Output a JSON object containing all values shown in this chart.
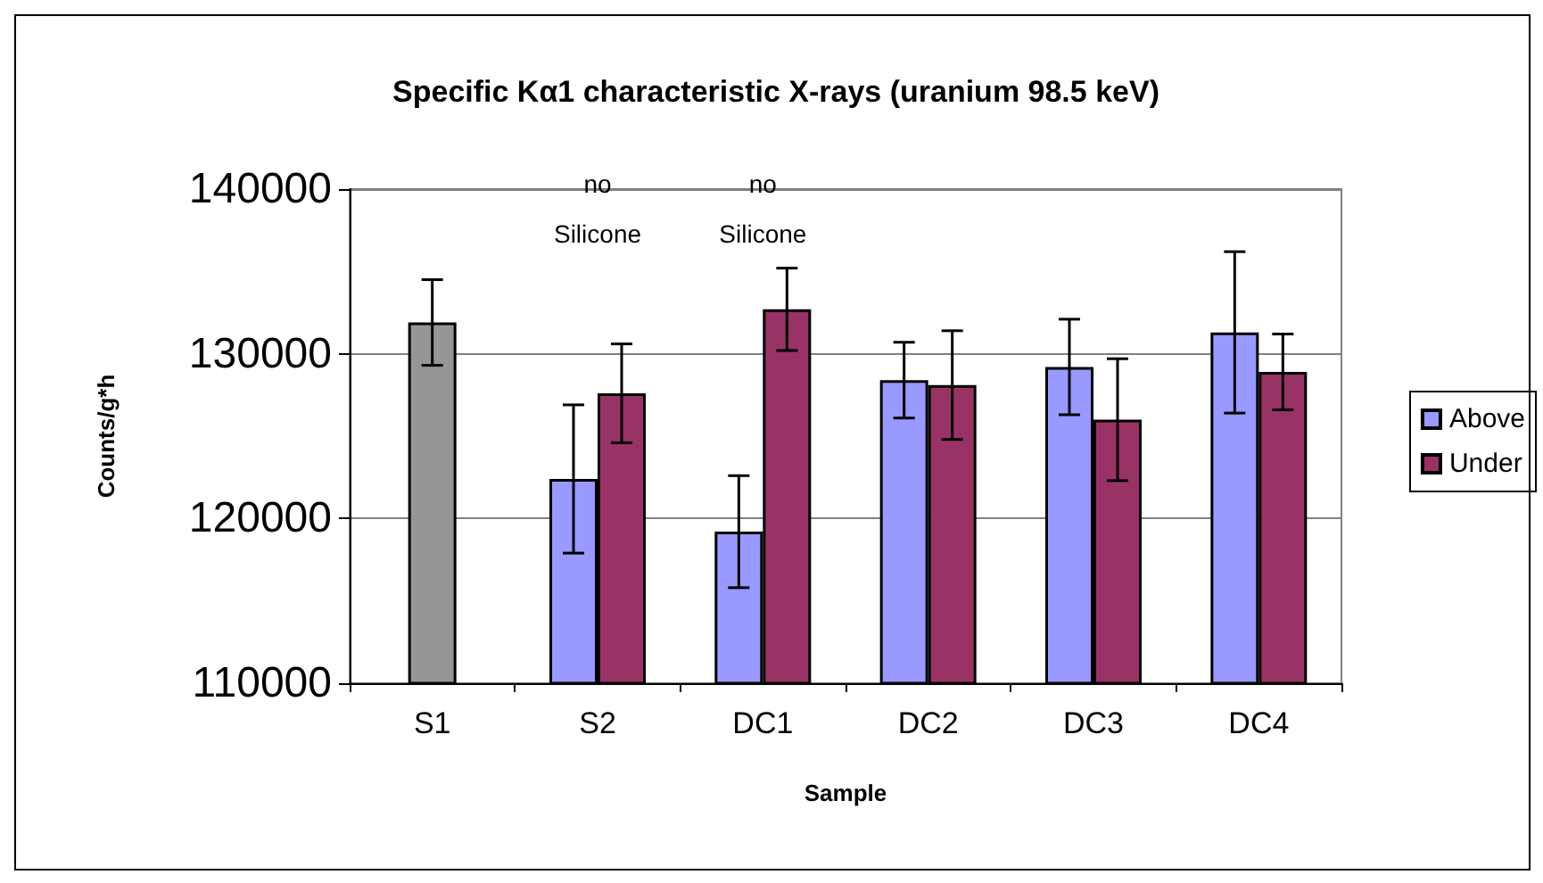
{
  "chart_data": {
    "type": "bar",
    "title": "Specific Kα1 characteristic X-rays (uranium 98.5 keV)",
    "xlabel": "Sample",
    "ylabel": "Counts/g*h",
    "categories": [
      "S1",
      "S2",
      "DC1",
      "DC2",
      "DC3",
      "DC4"
    ],
    "series": [
      {
        "color": "#969696",
        "values": [
          131900,
          null,
          null,
          null,
          null,
          null
        ],
        "errors": [
          2600,
          null,
          null,
          null,
          null,
          null
        ]
      },
      {
        "name": "Above",
        "color": "#9999ff",
        "values": [
          null,
          122400,
          119200,
          128400,
          129200,
          131300
        ],
        "errors": [
          null,
          4500,
          3400,
          2300,
          2900,
          4900
        ]
      },
      {
        "name": "Under",
        "color": "#993366",
        "values": [
          null,
          127600,
          132700,
          128100,
          126000,
          128900
        ],
        "errors": [
          null,
          3000,
          2500,
          3300,
          3700,
          2300
        ]
      }
    ],
    "ylim": [
      110000,
      140000
    ],
    "yticks": [
      110000,
      120000,
      130000,
      140000
    ],
    "grid": "y",
    "legend": "right",
    "annotations": [
      "no Silicone",
      "no Silicone"
    ]
  }
}
